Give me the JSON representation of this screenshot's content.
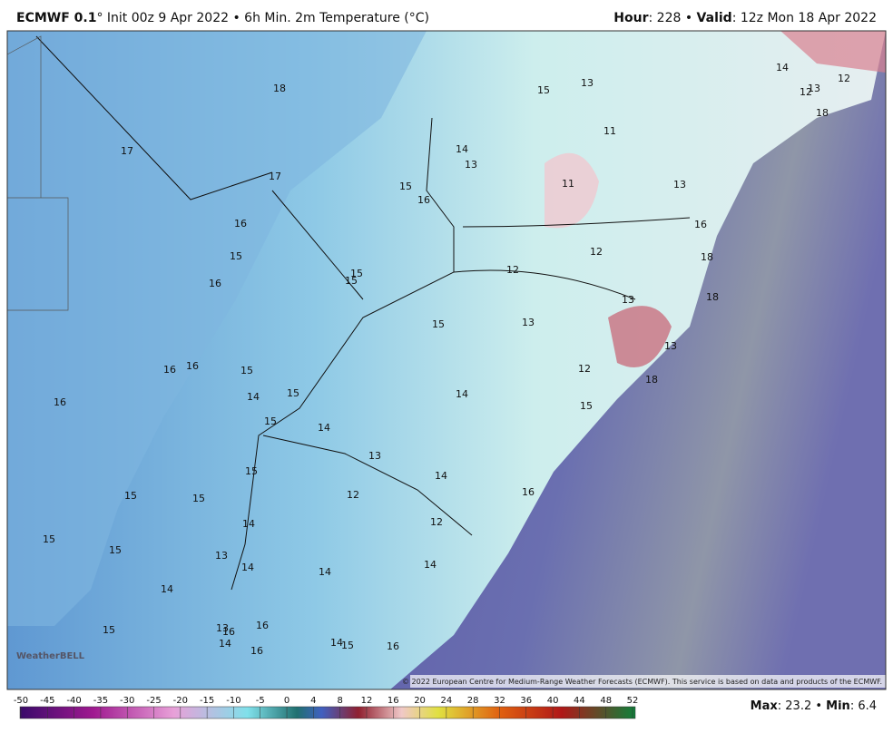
{
  "header": {
    "model": "ECMWF 0.1",
    "init": "° Init 00z 9 Apr 2022 • 6h Min. 2m Temperature (°C)",
    "hour_label": "Hour",
    "hour": ": 228 • ",
    "valid_label": "Valid",
    "valid": ": 12z Mon 18 Apr 2022"
  },
  "map_labels": [
    18,
    15,
    13,
    14,
    12,
    13,
    12,
    18,
    17,
    11,
    14,
    13,
    17,
    11,
    15,
    13,
    16,
    16,
    16,
    12,
    15,
    18,
    12,
    15,
    15,
    16,
    13,
    18,
    15,
    13,
    13,
    16,
    16,
    15,
    12,
    18,
    14,
    15,
    14,
    16,
    15,
    15,
    14,
    13,
    14,
    15,
    16,
    15,
    15,
    12,
    14,
    12,
    15,
    15,
    13,
    14,
    14,
    14,
    14,
    15,
    13,
    16,
    16,
    14,
    14,
    15,
    16,
    16
  ],
  "copyright": "© 2022 European Centre for Medium-Range Weather Forecasts (ECMWF). This service is based on data and products of the ECMWF.",
  "watermark": "WeatherBELL",
  "colorbar": {
    "ticks": [
      -50,
      -45,
      -40,
      -35,
      -30,
      -25,
      -20,
      -15,
      -10,
      -5,
      0,
      4,
      8,
      12,
      16,
      20,
      24,
      28,
      32,
      36,
      40,
      44,
      48,
      52
    ]
  },
  "stats": {
    "max_label": "Max",
    "max": ": 23.2 • ",
    "min_label": "Min",
    "min": ": 6.4"
  }
}
